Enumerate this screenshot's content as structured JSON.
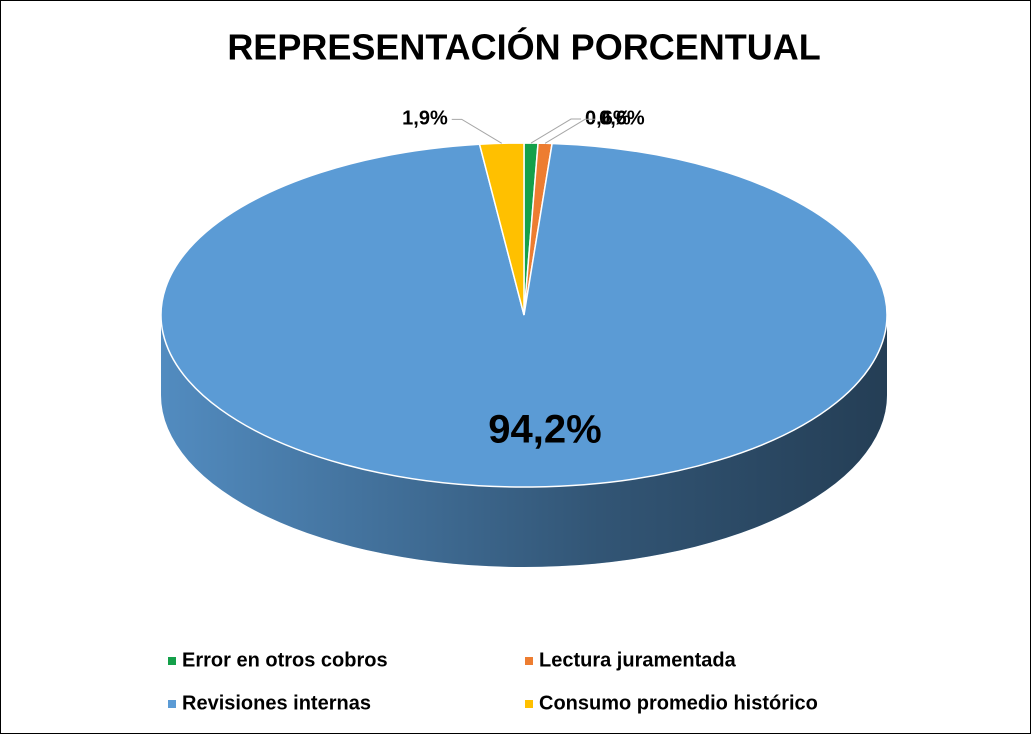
{
  "chart_data": {
    "type": "pie3d",
    "title": "REPRESENTACIÓN PORCENTUAL",
    "categories": [
      "Error en otros cobros",
      "Lectura juramentada",
      "Revisiones internas",
      "Consumo promedio histórico"
    ],
    "values": [
      0.6,
      0.6,
      94.2,
      1.9
    ],
    "value_labels": [
      "0,6%",
      "0,6%",
      "94,2%",
      "1,9%"
    ],
    "colors": [
      "#14a04a",
      "#ed7d31",
      "#5b9bd5",
      "#ffc000"
    ],
    "legend": "bottom"
  }
}
